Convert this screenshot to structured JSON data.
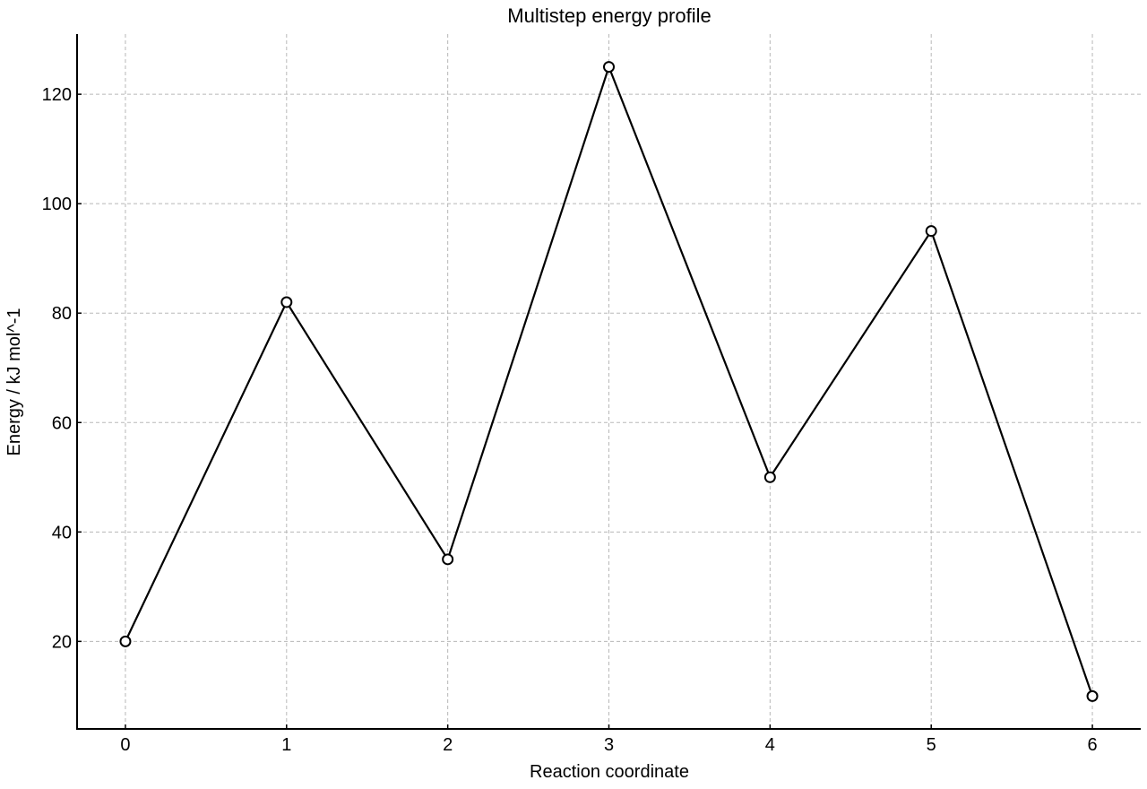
{
  "chart_data": {
    "type": "line",
    "title": "Multistep energy profile",
    "xlabel": "Reaction coordinate",
    "ylabel": "Energy / kJ mol^-1",
    "x": [
      0,
      1,
      2,
      3,
      4,
      5,
      6
    ],
    "series": [
      {
        "values": [
          20,
          82,
          35,
          125,
          50,
          95,
          10
        ]
      }
    ],
    "xticks": [
      0,
      1,
      2,
      3,
      4,
      5,
      6
    ],
    "yticks": [
      20,
      40,
      60,
      80,
      100,
      120
    ],
    "xlim": [
      -0.3,
      6.3
    ],
    "ylim": [
      4,
      131
    ],
    "grid": true,
    "grid_style": "dashed",
    "marker": "open-circle",
    "line_color": "#000000",
    "grid_color": "#b8b8b8"
  }
}
